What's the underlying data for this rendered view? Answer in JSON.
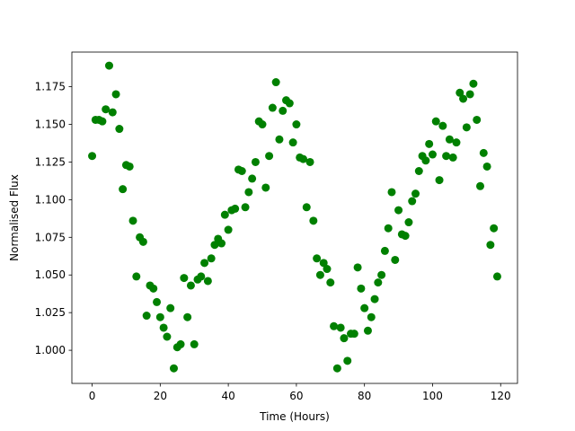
{
  "chart_data": {
    "type": "scatter",
    "x_label": "Time (Hours)",
    "y_label": "Normalised Flux",
    "color": "#008000",
    "x": [
      0,
      1,
      2,
      3,
      4,
      5,
      6,
      7,
      8,
      9,
      10,
      11,
      12,
      13,
      14,
      15,
      16,
      17,
      18,
      19,
      20,
      21,
      22,
      23,
      24,
      25,
      26,
      27,
      28,
      29,
      30,
      31,
      32,
      33,
      34,
      35,
      36,
      37,
      38,
      39,
      40,
      41,
      42,
      43,
      44,
      45,
      46,
      47,
      48,
      49,
      50,
      51,
      52,
      53,
      54,
      55,
      56,
      57,
      58,
      59,
      60,
      61,
      62,
      63,
      64,
      65,
      66,
      67,
      68,
      69,
      70,
      71,
      72,
      73,
      74,
      75,
      76,
      77,
      78,
      79,
      80,
      81,
      82,
      83,
      84,
      85,
      86,
      87,
      88,
      89,
      90,
      91,
      92,
      93,
      94,
      95,
      96,
      97,
      98,
      99,
      100,
      101,
      102,
      103,
      104,
      105,
      106,
      107,
      108,
      109,
      110,
      111,
      112,
      113,
      114,
      115,
      116,
      117,
      118,
      119
    ],
    "values": [
      1.129,
      1.153,
      1.153,
      1.152,
      1.16,
      1.189,
      1.158,
      1.17,
      1.147,
      1.107,
      1.123,
      1.122,
      1.086,
      1.049,
      1.075,
      1.072,
      1.023,
      1.043,
      1.041,
      1.032,
      1.022,
      1.015,
      1.009,
      1.028,
      0.988,
      1.002,
      1.004,
      1.048,
      1.022,
      1.043,
      1.004,
      1.047,
      1.049,
      1.058,
      1.046,
      1.061,
      1.07,
      1.074,
      1.071,
      1.09,
      1.08,
      1.093,
      1.094,
      1.12,
      1.119,
      1.095,
      1.105,
      1.114,
      1.125,
      1.152,
      1.15,
      1.108,
      1.129,
      1.161,
      1.178,
      1.14,
      1.159,
      1.166,
      1.164,
      1.138,
      1.15,
      1.128,
      1.127,
      1.095,
      1.125,
      1.086,
      1.061,
      1.05,
      1.058,
      1.054,
      1.045,
      1.016,
      0.988,
      1.015,
      1.008,
      0.993,
      1.011,
      1.011,
      1.055,
      1.041,
      1.028,
      1.013,
      1.022,
      1.034,
      1.045,
      1.05,
      1.066,
      1.081,
      1.105,
      1.06,
      1.093,
      1.077,
      1.076,
      1.085,
      1.099,
      1.104,
      1.119,
      1.129,
      1.126,
      1.137,
      1.13,
      1.152,
      1.113,
      1.149,
      1.129,
      1.14,
      1.128,
      1.138,
      1.171,
      1.167,
      1.148,
      1.17,
      1.177,
      1.153,
      1.109,
      1.131,
      1.122,
      1.07,
      1.081,
      1.049
    ],
    "xlim": [
      -5.95,
      124.95
    ],
    "ylim": [
      0.978,
      1.198
    ],
    "xticks": [
      0,
      20,
      40,
      60,
      80,
      100,
      120
    ],
    "yticks": [
      {
        "value": 1.0,
        "label": "1.000"
      },
      {
        "value": 1.025,
        "label": "1.025"
      },
      {
        "value": 1.05,
        "label": "1.050"
      },
      {
        "value": 1.075,
        "label": "1.075"
      },
      {
        "value": 1.1,
        "label": "1.100"
      },
      {
        "value": 1.125,
        "label": "1.125"
      },
      {
        "value": 1.15,
        "label": "1.150"
      },
      {
        "value": 1.175,
        "label": "1.175"
      }
    ]
  }
}
